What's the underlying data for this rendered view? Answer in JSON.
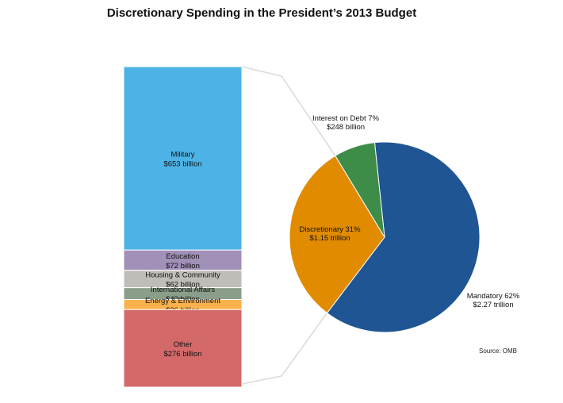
{
  "chart_data": {
    "type": "pie",
    "title": "Discretionary Spending in the President’s 2013 Budget",
    "source": "Source: OMB",
    "pie": {
      "slices": [
        {
          "label": "Mandatory 62%",
          "amount": "$2.27 trillion",
          "value": 62,
          "color": "#1f5593"
        },
        {
          "label": "Discretionary 31%",
          "amount": "$1.15 trillion",
          "value": 31,
          "color": "#e08b00"
        },
        {
          "label": "Interest on Debt 7%",
          "amount": "$248 billion",
          "value": 7,
          "color": "#3d8c48"
        }
      ]
    },
    "breakdown": {
      "of": "Discretionary",
      "unit": "billion",
      "segments": [
        {
          "label": "Military",
          "amount": "$653 billion",
          "value": 653,
          "color": "#4db3e6"
        },
        {
          "label": "Education",
          "amount": "$72 billion",
          "value": 72,
          "color": "#a190b8"
        },
        {
          "label": "Housing & Community",
          "amount": "$62 billion",
          "value": 62,
          "color": "#c0bdb8"
        },
        {
          "label": "International Affairs",
          "amount": "$42 billion",
          "value": 42,
          "color": "#8a9e89"
        },
        {
          "label": "Energy & Environment",
          "amount": "$36 billion",
          "value": 36,
          "color": "#fbb14c"
        },
        {
          "label": "Other",
          "amount": "$276 billion",
          "value": 276,
          "color": "#d4696a"
        }
      ]
    }
  }
}
